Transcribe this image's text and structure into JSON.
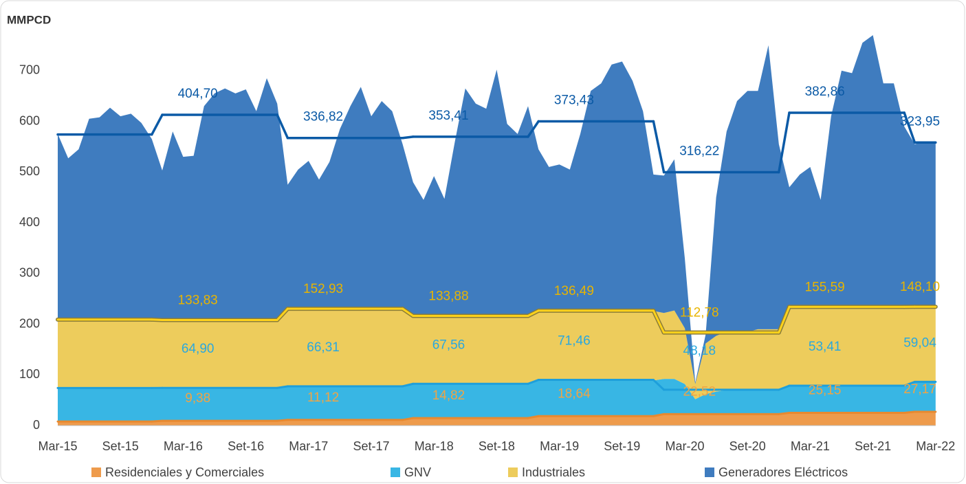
{
  "chart_data": {
    "type": "stacked_area",
    "y_axis_title": "MMPCD",
    "ylim": [
      0,
      800
    ],
    "yticks": [
      0,
      100,
      200,
      300,
      400,
      500,
      600,
      700
    ],
    "grid": false,
    "legend": "bottom",
    "categories": [
      "Mar-15",
      null,
      null,
      null,
      null,
      null,
      "Set-15",
      null,
      null,
      null,
      null,
      null,
      "Mar-16",
      null,
      null,
      null,
      null,
      null,
      "Set-16",
      null,
      null,
      null,
      null,
      null,
      "Mar-17",
      null,
      null,
      null,
      null,
      null,
      "Set-17",
      null,
      null,
      null,
      null,
      null,
      "Mar-18",
      null,
      null,
      null,
      null,
      null,
      "Set-18",
      null,
      null,
      null,
      null,
      null,
      "Mar-19",
      null,
      null,
      null,
      null,
      null,
      "Set-19",
      null,
      null,
      null,
      null,
      null,
      "Mar-20",
      null,
      null,
      null,
      null,
      null,
      "Set-20",
      null,
      null,
      null,
      null,
      null,
      "Mar-21",
      null,
      null,
      null,
      null,
      null,
      "Set-21",
      null,
      null,
      null,
      null,
      null,
      "Mar-22"
    ],
    "series": [
      {
        "name": "Residenciales y Comerciales",
        "color": "#EE9B4C",
        "line_color": "#E8892F",
        "label_color": "#F0A444",
        "values": [
          8,
          8,
          8,
          8,
          8,
          8,
          8,
          8,
          8,
          8,
          9,
          9,
          9,
          9,
          9,
          9,
          9,
          9,
          9,
          9,
          9,
          9,
          11,
          11,
          11,
          11,
          11,
          11,
          11,
          11,
          11,
          11,
          11,
          11,
          15,
          15,
          15,
          15,
          15,
          15,
          15,
          15,
          15,
          15,
          15,
          15,
          18,
          18,
          18,
          18,
          18,
          18,
          18,
          18,
          18,
          18,
          18,
          18,
          22,
          22,
          22,
          22,
          22,
          22,
          22,
          22,
          22,
          22,
          22,
          22,
          25,
          25,
          25,
          25,
          25,
          25,
          25,
          25,
          25,
          25,
          25,
          25,
          27,
          27,
          27
        ],
        "averages": [
          8,
          9.38,
          11.12,
          14.82,
          18.64,
          22.52,
          25.15,
          27.17
        ],
        "average_labels": [
          null,
          "9,38",
          "11,12",
          "14,82",
          "18,64",
          "22,52",
          "25,15",
          "27,17"
        ]
      },
      {
        "name": "GNV",
        "color": "#38B6E4",
        "line_color": "#1E9FDB",
        "label_color": "#2AA8DF",
        "values": [
          65,
          65,
          65,
          65,
          65,
          65,
          65,
          65,
          65,
          65,
          65,
          65,
          65,
          65,
          65,
          65,
          65,
          65,
          65,
          65,
          65,
          65,
          66,
          66,
          66,
          66,
          66,
          66,
          66,
          66,
          66,
          66,
          66,
          66,
          68,
          68,
          68,
          68,
          68,
          68,
          68,
          68,
          68,
          68,
          68,
          68,
          71,
          71,
          71,
          71,
          71,
          71,
          71,
          71,
          71,
          71,
          71,
          71,
          70,
          70,
          60,
          30,
          40,
          45,
          48,
          48,
          48,
          48,
          48,
          48,
          53,
          53,
          53,
          53,
          53,
          53,
          53,
          53,
          53,
          53,
          53,
          53,
          59,
          59,
          59
        ],
        "averages": [
          66,
          64.9,
          66.31,
          67.56,
          71.46,
          48.18,
          53.41,
          59.04
        ],
        "average_labels": [
          null,
          "64,90",
          "66,31",
          "67,56",
          "71,46",
          "48,18",
          "53,41",
          "59,04"
        ]
      },
      {
        "name": "Industriales",
        "color": "#EDCC5C",
        "line_color": "#FFD21A",
        "label_color": "#E8B400",
        "values": [
          137,
          137,
          137,
          137,
          137,
          137,
          137,
          137,
          137,
          137,
          134,
          134,
          134,
          134,
          134,
          134,
          134,
          134,
          134,
          134,
          134,
          134,
          153,
          153,
          153,
          153,
          153,
          153,
          153,
          153,
          153,
          153,
          153,
          153,
          134,
          134,
          134,
          134,
          134,
          134,
          134,
          134,
          134,
          134,
          134,
          134,
          137,
          137,
          137,
          137,
          137,
          137,
          137,
          137,
          137,
          137,
          137,
          137,
          130,
          135,
          110,
          30,
          100,
          110,
          115,
          115,
          115,
          120,
          120,
          120,
          156,
          156,
          156,
          156,
          156,
          156,
          156,
          156,
          156,
          156,
          156,
          156,
          148,
          148,
          148
        ],
        "averages": [
          135,
          133.83,
          152.93,
          133.88,
          136.49,
          112.78,
          155.59,
          148.1
        ],
        "average_labels": [
          null,
          "133,83",
          "152,93",
          "133,88",
          "136,49",
          "112,78",
          "155,59",
          "148,10"
        ]
      },
      {
        "name": "Generadores Eléctricos",
        "color": "#3F7CBF",
        "line_color": "#0B5AA6",
        "label_color": "#0B5AA6",
        "values": [
          365,
          317,
          335,
          395,
          398,
          417,
          400,
          405,
          387,
          355,
          295,
          372,
          322,
          324,
          422,
          447,
          457,
          447,
          455,
          412,
          477,
          427,
          245,
          275,
          292,
          255,
          290,
          355,
          400,
          438,
          380,
          410,
          390,
          325,
          263,
          228,
          275,
          230,
          343,
          448,
          418,
          408,
          485,
          378,
          358,
          413,
          319,
          284,
          289,
          279,
          349,
          434,
          449,
          486,
          492,
          454,
          394,
          269,
          271,
          298,
          138,
          3,
          18,
          273,
          395,
          455,
          475,
          470,
          560,
          365,
          236,
          261,
          276,
          211,
          376,
          466,
          461,
          521,
          536,
          441,
          441,
          356,
          321,
          326,
          326
        ],
        "averages": [
          365,
          404.7,
          336.82,
          353.41,
          373.43,
          316.22,
          382.86,
          323.95
        ],
        "average_labels": [
          null,
          "404,70",
          "336,82",
          "353,41",
          "373,43",
          "316,22",
          "382,86",
          "323,95"
        ]
      }
    ]
  }
}
